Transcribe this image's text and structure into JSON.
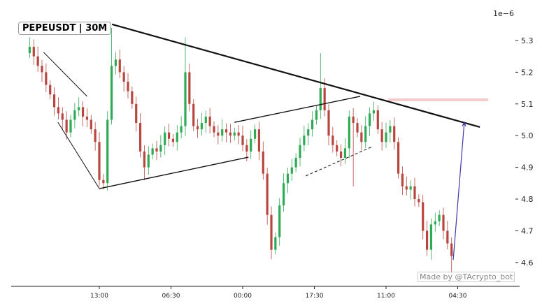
{
  "chart_data": {
    "type": "candlestick",
    "title": "PEPEUSDT | 30M",
    "y_offset_label": "1e−6",
    "ylim": [
      4.54,
      5.37
    ],
    "y_ticks": [
      4.6,
      4.7,
      4.8,
      4.9,
      5.0,
      5.1,
      5.2,
      5.3
    ],
    "x_ticks": [
      {
        "hour": 17,
        "label": "13:00"
      },
      {
        "hour": 34.5,
        "label": "06:30"
      },
      {
        "hour": 52,
        "label": "00:00"
      },
      {
        "hour": 69.5,
        "label": "17:30"
      },
      {
        "hour": 87,
        "label": "11:00"
      },
      {
        "hour": 104.5,
        "label": "04:30"
      }
    ],
    "grid": false,
    "colors": {
      "up": "#2eaa55",
      "down": "#b8463f",
      "trend": "#111111",
      "resistance_band": "#f6c9c9",
      "arrow": "#3a3aa8"
    },
    "close": [
      5.28,
      5.25,
      5.22,
      5.2,
      5.16,
      5.13,
      5.09,
      5.07,
      5.05,
      5.01,
      5.05,
      5.08,
      5.09,
      5.06,
      5.05,
      5.02,
      4.98,
      4.86,
      4.85,
      5.05,
      5.22,
      5.24,
      5.2,
      5.17,
      5.14,
      5.1,
      5.04,
      4.95,
      4.9,
      4.94,
      4.96,
      4.95,
      4.97,
      5.01,
      4.99,
      4.98,
      5.01,
      5.03,
      5.2,
      5.1,
      5.03,
      5.02,
      5.04,
      5.06,
      5.03,
      5.01,
      5.0,
      5.02,
      5.01,
      5.0,
      5.01,
      5.0,
      4.97,
      4.95,
      4.99,
      5.02,
      4.95,
      4.88,
      4.75,
      4.64,
      4.68,
      4.78,
      4.85,
      4.88,
      4.9,
      4.93,
      4.97,
      5.0,
      5.02,
      5.05,
      5.08,
      5.15,
      5.08,
      5.0,
      4.97,
      4.95,
      4.93,
      4.96,
      5.06,
      5.04,
      5.01,
      4.98,
      5.03,
      5.07,
      5.08,
      5.02,
      4.98,
      5.01,
      5.03,
      4.98,
      4.88,
      4.84,
      4.83,
      4.84,
      4.8,
      4.79,
      4.7,
      4.64,
      4.72,
      4.73,
      4.75,
      4.7,
      4.66,
      4.62
    ],
    "extremes": [
      {
        "index": 0,
        "high": 5.31
      },
      {
        "index": 18,
        "low": 4.83
      },
      {
        "index": 20,
        "high": 5.34
      },
      {
        "index": 28,
        "low": 4.86
      },
      {
        "index": 38,
        "high": 5.31
      },
      {
        "index": 59,
        "low": 4.61
      },
      {
        "index": 71,
        "high": 5.26
      },
      {
        "index": 79,
        "low": 4.84
      },
      {
        "index": 103,
        "low": 4.56
      }
    ],
    "lines": [
      {
        "kind": "resistance",
        "from": [
          20.1,
          5.351
        ],
        "to": [
          109.9,
          5.027
        ],
        "width": 2.2
      },
      {
        "kind": "wedge-upper",
        "from": [
          3.4,
          5.263
        ],
        "to": [
          14.0,
          5.124
        ],
        "width": 1
      },
      {
        "kind": "wedge-lower",
        "from": [
          6.9,
          5.042
        ],
        "to": [
          17.0,
          4.833
        ],
        "width": 1
      },
      {
        "kind": "support",
        "from": [
          17.0,
          4.833
        ],
        "to": [
          53.4,
          4.932
        ],
        "width": 1.4
      },
      {
        "kind": "channel-upper",
        "from": [
          50.0,
          5.042
        ],
        "to": [
          80.7,
          5.124
        ],
        "width": 1.4
      },
      {
        "kind": "channel-lower-dashed",
        "from": [
          67.4,
          4.873
        ],
        "to": [
          83.6,
          4.965
        ],
        "width": 1,
        "dashed": true
      }
    ],
    "resistance_band": {
      "price": 5.113,
      "from_hour": 87.5,
      "to_hour": 111.9
    },
    "arrow": {
      "from": [
        103.4,
        4.608
      ],
      "to": [
        106.1,
        5.042
      ]
    },
    "watermark": "Made by @TAcrypto_bot"
  }
}
